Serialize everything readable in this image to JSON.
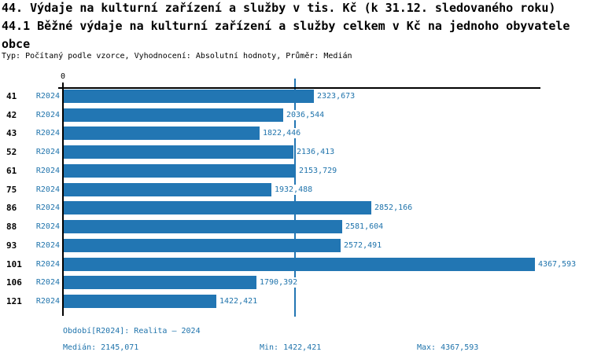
{
  "header": {
    "title_line1": "44. Výdaje na kulturní zařízení a služby v tis. Kč (k 31.12. sledovaného roku)",
    "title_line2": "44.1 Běžné výdaje na kulturní zařízení a služby celkem v Kč na jednoho obyvatele",
    "title_line3": "obce",
    "subtitle": "Typ: Počítaný podle vzorce, Vyhodnocení: Absolutní hodnoty, Průměr: Medián"
  },
  "chart_data": {
    "type": "bar",
    "orientation": "horizontal",
    "series_name": "R2024",
    "categories": [
      "41",
      "42",
      "43",
      "52",
      "61",
      "75",
      "86",
      "88",
      "93",
      "101",
      "106",
      "121"
    ],
    "values": [
      2323.673,
      2036.544,
      1822.446,
      2136.413,
      2153.729,
      1932.488,
      2852.166,
      2581.604,
      2572.491,
      4367.593,
      1790.392,
      1422.421
    ],
    "rows": [
      {
        "category": "41",
        "series": "R2024",
        "value": 2323.673,
        "display": "2323,673"
      },
      {
        "category": "42",
        "series": "R2024",
        "value": 2036.544,
        "display": "2036,544"
      },
      {
        "category": "43",
        "series": "R2024",
        "value": 1822.446,
        "display": "1822,446"
      },
      {
        "category": "52",
        "series": "R2024",
        "value": 2136.413,
        "display": "2136,413"
      },
      {
        "category": "61",
        "series": "R2024",
        "value": 2153.729,
        "display": "2153,729"
      },
      {
        "category": "75",
        "series": "R2024",
        "value": 1932.488,
        "display": "1932,488"
      },
      {
        "category": "86",
        "series": "R2024",
        "value": 2852.166,
        "display": "2852,166"
      },
      {
        "category": "88",
        "series": "R2024",
        "value": 2581.604,
        "display": "2581,604"
      },
      {
        "category": "93",
        "series": "R2024",
        "value": 2572.491,
        "display": "2572,491"
      },
      {
        "category": "101",
        "series": "R2024",
        "value": 4367.593,
        "display": "4367,593"
      },
      {
        "category": "106",
        "series": "R2024",
        "value": 1790.392,
        "display": "1790,392"
      },
      {
        "category": "121",
        "series": "R2024",
        "value": 1422.421,
        "display": "1422,421"
      }
    ],
    "x_axis": {
      "zero_label": "0",
      "xlim": [
        0,
        4420
      ],
      "grid": false
    },
    "median_value": 2145.071,
    "stats": {
      "median": 2145.071,
      "min": 1422.421,
      "max": 4367.593
    },
    "legend_position": "none",
    "colors": {
      "bar": "#2276b3",
      "accent_text": "#2074ac",
      "axis": "#000000"
    }
  },
  "footer": {
    "period": "Období[R2024]: Realita – 2024",
    "median": "Medián: 2145,071",
    "min": "Min: 1422,421",
    "max": "Max: 4367,593"
  }
}
